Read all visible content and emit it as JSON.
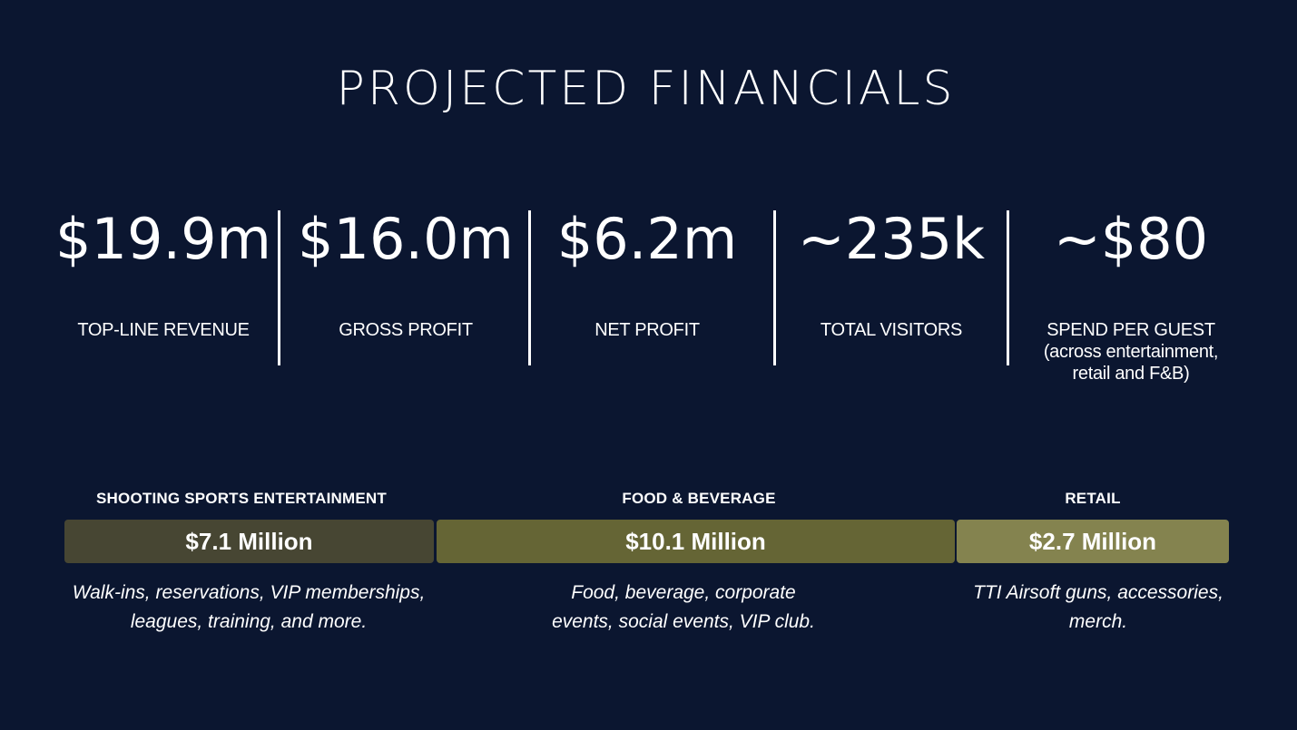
{
  "title": "PROJECTED FINANCIALS",
  "metrics": [
    {
      "value": "$19.9m",
      "label": "TOP-LINE REVENUE"
    },
    {
      "value": "$16.0m",
      "label": "GROSS PROFIT"
    },
    {
      "value": "$6.2m",
      "label": "NET PROFIT"
    },
    {
      "value": "~235k",
      "label": "TOTAL VISITORS"
    },
    {
      "value": "~$80",
      "label": "SPEND PER GUEST",
      "sub1": "(across entertainment,",
      "sub2": "retail and F&B)"
    }
  ],
  "segments": [
    {
      "heading": "SHOOTING SPORTS ENTERTAINMENT",
      "amount": "$7.1 Million",
      "desc_line1": "Walk-ins, reservations, VIP memberships,",
      "desc_line2": "leagues, training, and more.",
      "color": "#474633"
    },
    {
      "heading": "FOOD & BEVERAGE",
      "amount": "$10.1 Million",
      "desc_line1": "Food, beverage, corporate",
      "desc_line2": "events, social events, VIP club.",
      "color": "#656535"
    },
    {
      "heading": "RETAIL",
      "amount": "$2.7 Million",
      "desc_line1": "TTI Airsoft guns, accessories,",
      "desc_line2": "merch.",
      "color": "#84834f"
    }
  ],
  "colors": {
    "background": "#0b1630",
    "text": "#ffffff"
  }
}
